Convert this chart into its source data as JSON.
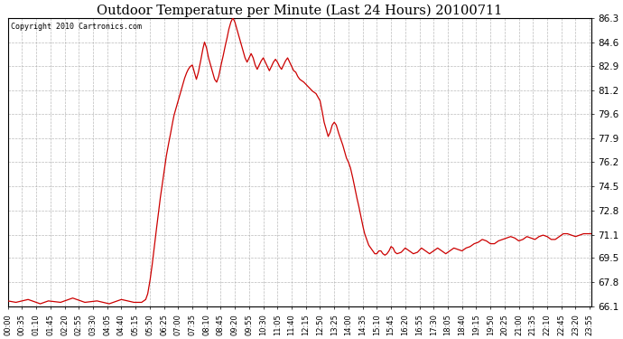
{
  "title": "Outdoor Temperature per Minute (Last 24 Hours) 20100711",
  "copyright": "Copyright 2010 Cartronics.com",
  "background_color": "#ffffff",
  "plot_background": "#ffffff",
  "line_color": "#cc0000",
  "grid_color": "#aaaaaa",
  "yticks": [
    66.1,
    67.8,
    69.5,
    71.1,
    72.8,
    74.5,
    76.2,
    77.9,
    79.6,
    81.2,
    82.9,
    84.6,
    86.3
  ],
  "ymin": 66.1,
  "ymax": 86.3,
  "xtick_labels": [
    "00:00",
    "00:35",
    "01:10",
    "01:45",
    "02:20",
    "02:55",
    "03:30",
    "04:05",
    "04:40",
    "05:15",
    "05:50",
    "06:25",
    "07:00",
    "07:35",
    "08:10",
    "08:45",
    "09:20",
    "09:55",
    "10:30",
    "11:05",
    "11:40",
    "12:15",
    "12:50",
    "13:25",
    "14:00",
    "14:35",
    "15:10",
    "15:45",
    "16:20",
    "16:55",
    "17:30",
    "18:05",
    "18:40",
    "19:15",
    "19:50",
    "20:25",
    "21:00",
    "21:35",
    "22:10",
    "22:45",
    "23:20",
    "23:55"
  ],
  "num_points": 1440,
  "key_points": {
    "0": 66.5,
    "20": 66.4,
    "50": 66.6,
    "80": 66.3,
    "100": 66.5,
    "130": 66.4,
    "160": 66.7,
    "190": 66.4,
    "220": 66.5,
    "250": 66.3,
    "280": 66.6,
    "310": 66.4,
    "330": 66.4,
    "340": 66.6,
    "345": 67.0,
    "350": 67.8,
    "355": 68.8,
    "360": 70.0,
    "365": 71.2,
    "370": 72.3,
    "375": 73.5,
    "380": 74.5,
    "385": 75.5,
    "390": 76.5,
    "395": 77.3,
    "400": 78.0,
    "405": 78.8,
    "410": 79.5,
    "415": 80.0,
    "420": 80.5,
    "425": 81.0,
    "430": 81.5,
    "435": 82.0,
    "440": 82.4,
    "445": 82.7,
    "450": 82.9,
    "455": 83.0,
    "460": 82.5,
    "465": 82.0,
    "470": 82.5,
    "475": 83.2,
    "480": 84.0,
    "485": 84.6,
    "490": 84.2,
    "495": 83.5,
    "500": 83.0,
    "505": 82.5,
    "510": 82.0,
    "515": 81.8,
    "520": 82.2,
    "525": 82.9,
    "530": 83.5,
    "535": 84.2,
    "540": 84.8,
    "545": 85.5,
    "550": 86.0,
    "555": 86.3,
    "560": 86.0,
    "565": 85.5,
    "570": 85.0,
    "575": 84.5,
    "580": 84.0,
    "585": 83.5,
    "590": 83.2,
    "595": 83.5,
    "600": 83.8,
    "605": 83.5,
    "610": 83.0,
    "615": 82.7,
    "620": 83.0,
    "625": 83.3,
    "630": 83.5,
    "635": 83.2,
    "640": 82.9,
    "645": 82.6,
    "650": 82.9,
    "655": 83.2,
    "660": 83.4,
    "665": 83.2,
    "670": 82.9,
    "675": 82.7,
    "680": 83.0,
    "685": 83.3,
    "690": 83.5,
    "695": 83.2,
    "700": 82.9,
    "705": 82.6,
    "710": 82.5,
    "715": 82.2,
    "720": 82.0,
    "730": 81.8,
    "740": 81.5,
    "750": 81.2,
    "760": 81.0,
    "770": 80.5,
    "775": 79.8,
    "780": 79.0,
    "785": 78.5,
    "790": 78.0,
    "795": 78.3,
    "800": 78.8,
    "805": 79.0,
    "810": 78.8,
    "815": 78.3,
    "820": 77.9,
    "825": 77.5,
    "830": 77.0,
    "835": 76.5,
    "840": 76.2,
    "845": 75.8,
    "850": 75.2,
    "855": 74.5,
    "860": 73.8,
    "865": 73.2,
    "870": 72.5,
    "875": 71.8,
    "880": 71.2,
    "885": 70.8,
    "890": 70.4,
    "895": 70.2,
    "900": 70.0,
    "905": 69.8,
    "910": 69.8,
    "915": 70.0,
    "920": 70.0,
    "925": 69.8,
    "930": 69.7,
    "935": 69.8,
    "940": 70.0,
    "945": 70.3,
    "950": 70.2,
    "955": 69.9,
    "960": 69.8,
    "970": 69.9,
    "980": 70.2,
    "990": 70.0,
    "1000": 69.8,
    "1010": 69.9,
    "1020": 70.2,
    "1030": 70.0,
    "1040": 69.8,
    "1050": 70.0,
    "1060": 70.2,
    "1070": 70.0,
    "1080": 69.8,
    "1090": 70.0,
    "1100": 70.2,
    "1110": 70.1,
    "1120": 70.0,
    "1130": 70.2,
    "1140": 70.3,
    "1150": 70.5,
    "1160": 70.6,
    "1170": 70.8,
    "1180": 70.7,
    "1190": 70.5,
    "1200": 70.5,
    "1210": 70.7,
    "1220": 70.8,
    "1230": 70.9,
    "1240": 71.0,
    "1250": 70.9,
    "1260": 70.7,
    "1270": 70.8,
    "1280": 71.0,
    "1290": 70.9,
    "1300": 70.8,
    "1310": 71.0,
    "1320": 71.1,
    "1330": 71.0,
    "1340": 70.8,
    "1350": 70.8,
    "1360": 71.0,
    "1370": 71.2,
    "1380": 71.2,
    "1390": 71.1,
    "1400": 71.0,
    "1410": 71.1,
    "1420": 71.2,
    "1430": 71.2,
    "1439": 71.2
  }
}
